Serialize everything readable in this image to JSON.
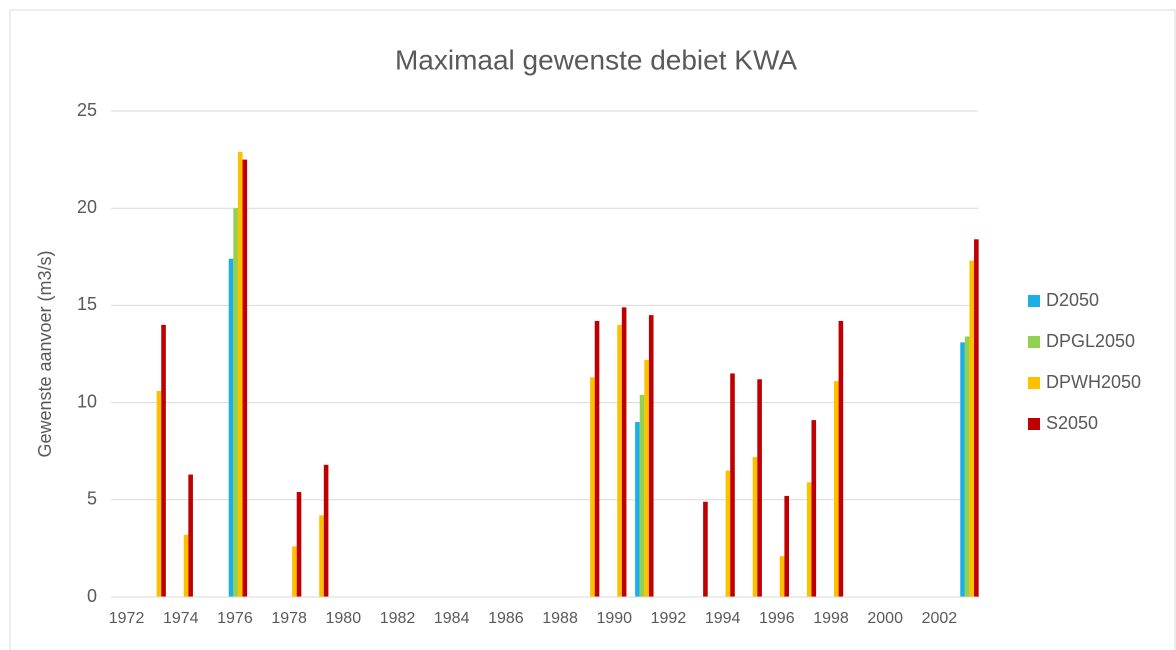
{
  "chart_data": {
    "type": "bar",
    "title": "Maximaal gewenste debiet KWA",
    "y_label": "Gewenste aanvoer (m3/s)",
    "categories": [
      "1972",
      null,
      "1974",
      null,
      "1976",
      null,
      "1978",
      null,
      "1980",
      null,
      "1982",
      null,
      "1984",
      null,
      "1986",
      null,
      "1988",
      null,
      "1990",
      null,
      "1992",
      null,
      "1994",
      null,
      "1996",
      null,
      "1998",
      null,
      "2000",
      null,
      "2002",
      null
    ],
    "series": [
      {
        "name": "D2050",
        "color": "#1aafe6",
        "values": [
          null,
          null,
          null,
          null,
          17.4,
          null,
          null,
          null,
          null,
          null,
          null,
          null,
          null,
          null,
          null,
          null,
          null,
          null,
          null,
          9.0,
          null,
          null,
          null,
          null,
          null,
          null,
          null,
          null,
          null,
          null,
          null,
          13.1
        ]
      },
      {
        "name": "DPGL2050",
        "color": "#92d050",
        "values": [
          null,
          null,
          null,
          null,
          20.0,
          null,
          null,
          null,
          null,
          null,
          null,
          null,
          null,
          null,
          null,
          null,
          null,
          null,
          null,
          10.4,
          null,
          null,
          null,
          null,
          null,
          null,
          null,
          null,
          null,
          null,
          null,
          13.4
        ]
      },
      {
        "name": "DPWH2050",
        "color": "#ffc000",
        "values": [
          null,
          10.6,
          3.2,
          null,
          22.9,
          null,
          2.6,
          4.2,
          null,
          null,
          null,
          null,
          null,
          null,
          null,
          null,
          null,
          11.3,
          14.0,
          12.2,
          null,
          null,
          6.5,
          7.2,
          2.1,
          5.9,
          11.1,
          null,
          null,
          null,
          null,
          17.3
        ]
      },
      {
        "name": "S2050",
        "color": "#c00000",
        "values": [
          null,
          14.0,
          6.3,
          null,
          22.5,
          null,
          5.4,
          6.8,
          null,
          null,
          null,
          null,
          null,
          null,
          null,
          null,
          null,
          14.2,
          14.9,
          14.5,
          null,
          4.9,
          11.5,
          11.2,
          5.2,
          9.1,
          14.2,
          null,
          null,
          null,
          null,
          18.4
        ]
      }
    ],
    "ylim": [
      0,
      25
    ],
    "yticks": [
      0,
      5,
      10,
      15,
      20,
      25
    ],
    "grid": true,
    "legend": "right"
  }
}
